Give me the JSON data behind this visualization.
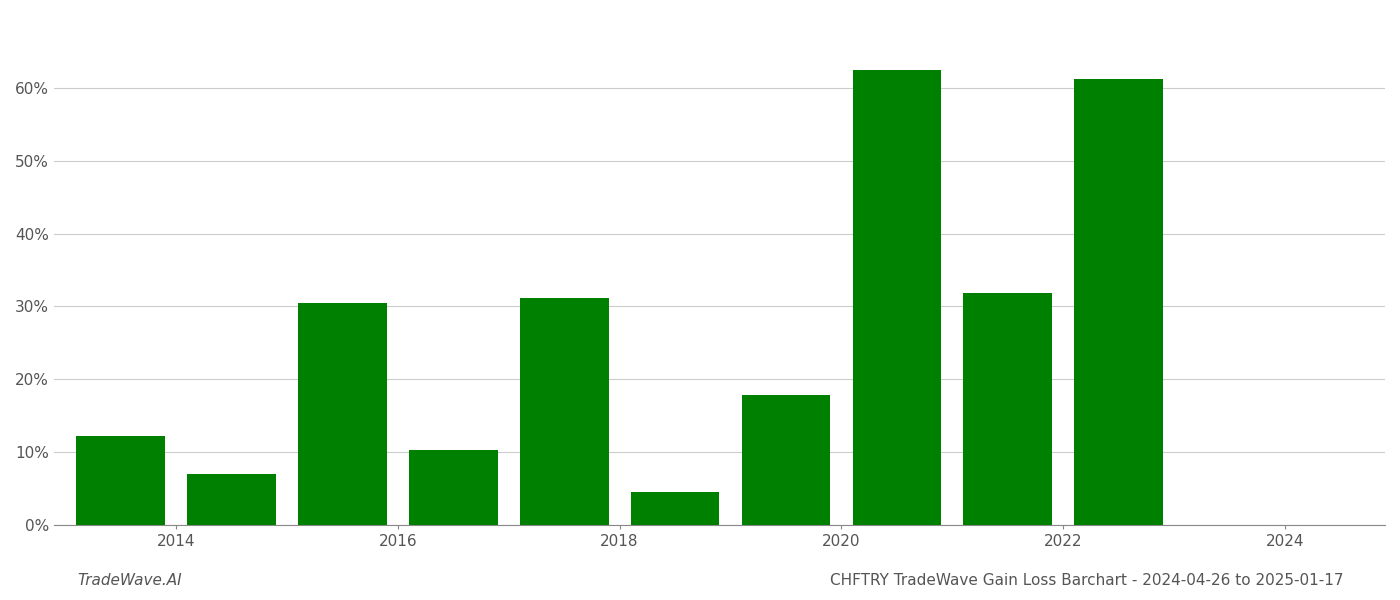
{
  "years": [
    2013,
    2014,
    2015,
    2016,
    2017,
    2018,
    2019,
    2020,
    2021,
    2022,
    2023
  ],
  "values": [
    0.122,
    0.07,
    0.305,
    0.103,
    0.312,
    0.045,
    0.178,
    0.625,
    0.318,
    0.612,
    0.0
  ],
  "bar_color": "#008000",
  "title": "CHFTRY TradeWave Gain Loss Barchart - 2024-04-26 to 2025-01-17",
  "watermark": "TradeWave.AI",
  "ylim": [
    0,
    0.7
  ],
  "yticks": [
    0.0,
    0.1,
    0.2,
    0.3,
    0.4,
    0.5,
    0.6
  ],
  "ytick_labels": [
    "0%",
    "10%",
    "20%",
    "30%",
    "40%",
    "50%",
    "60%"
  ],
  "xtick_positions": [
    2013.5,
    2015.5,
    2017.5,
    2019.5,
    2021.5,
    2023.5
  ],
  "xtick_labels": [
    "2014",
    "2016",
    "2018",
    "2020",
    "2022",
    "2024"
  ],
  "xlim_min": 2012.4,
  "xlim_max": 2024.4,
  "background_color": "#ffffff",
  "grid_color": "#cccccc",
  "title_fontsize": 11,
  "watermark_fontsize": 11,
  "axis_label_fontsize": 11,
  "bar_width": 0.8
}
